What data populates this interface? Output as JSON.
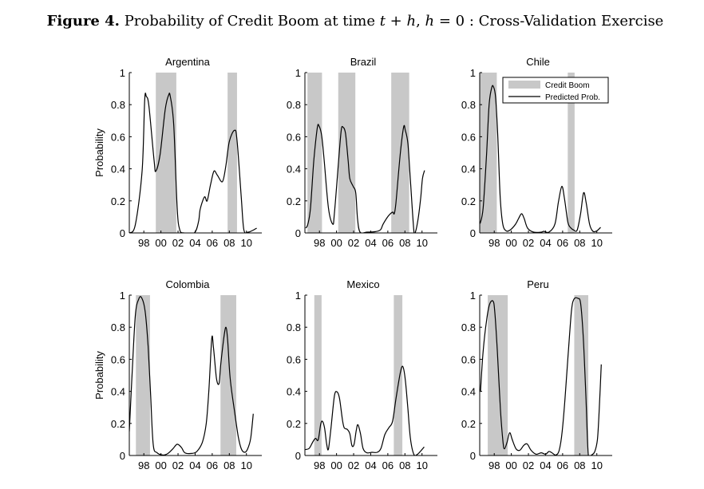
{
  "figure": {
    "label": "Figure 4.",
    "title_pre": "Probability of Credit Boom at time ",
    "title_t": "t",
    "title_plus": " + ",
    "title_h": "h",
    "title_comma": ", ",
    "title_h2": "h",
    "title_rest": " = 0 : Cross-Validation Exercise"
  },
  "legend": {
    "boom": "Credit Boom",
    "prob": "Predicted Prob."
  },
  "colors": {
    "boom": "#c8c8c8",
    "line": "#000000"
  },
  "chart_data": [
    {
      "type": "line",
      "title": "Argentina",
      "ylabel": "Probability",
      "xlabel": "",
      "xlim": [
        1996.3,
        2011.8
      ],
      "ylim": [
        0,
        1
      ],
      "yticks": [
        "0",
        "0.2",
        "0.4",
        "0.6",
        "0.8",
        "1"
      ],
      "xticks": [
        1998,
        2000,
        2002,
        2004,
        2006,
        2008,
        2010
      ],
      "xticklabels": [
        "98",
        "00",
        "02",
        "04",
        "06",
        "08",
        "10"
      ],
      "boom_periods": [
        [
          1999.4,
          2001.8
        ],
        [
          2007.8,
          2008.9
        ]
      ],
      "series": [
        [
          1996.3,
          0
        ],
        [
          1997.0,
          0.05
        ],
        [
          1997.8,
          0.39
        ],
        [
          1998.1,
          0.83
        ],
        [
          1998.3,
          0.85
        ],
        [
          1998.6,
          0.79
        ],
        [
          1999.2,
          0.45
        ],
        [
          1999.4,
          0.385
        ],
        [
          1999.9,
          0.49
        ],
        [
          2000.5,
          0.77
        ],
        [
          2000.9,
          0.86
        ],
        [
          2001.1,
          0.85
        ],
        [
          2001.5,
          0.67
        ],
        [
          2001.9,
          0.155
        ],
        [
          2002.2,
          0.02
        ],
        [
          2002.7,
          0
        ],
        [
          2003.9,
          0
        ],
        [
          2004.4,
          0.07
        ],
        [
          2004.6,
          0.15
        ],
        [
          2005.1,
          0.225
        ],
        [
          2005.4,
          0.2
        ],
        [
          2005.8,
          0.3
        ],
        [
          2006.2,
          0.385
        ],
        [
          2006.6,
          0.36
        ],
        [
          2007.2,
          0.32
        ],
        [
          2007.6,
          0.42
        ],
        [
          2008.0,
          0.57
        ],
        [
          2008.6,
          0.64
        ],
        [
          2008.9,
          0.58
        ],
        [
          2009.4,
          0.22
        ],
        [
          2009.7,
          0.02
        ],
        [
          2010.2,
          0.005
        ],
        [
          2010.7,
          0.015
        ],
        [
          2011.2,
          0.03
        ]
      ]
    },
    {
      "type": "line",
      "title": "Brazil",
      "ylabel": "",
      "xlabel": "",
      "xlim": [
        1996.3,
        2011.8
      ],
      "ylim": [
        0,
        1
      ],
      "yticks": [
        "0",
        "0.2",
        "0.4",
        "0.6",
        "0.8",
        "1"
      ],
      "xticks": [
        1998,
        2000,
        2002,
        2004,
        2006,
        2008,
        2010
      ],
      "xticklabels": [
        "98",
        "00",
        "02",
        "04",
        "06",
        "08",
        "10"
      ],
      "boom_periods": [
        [
          1996.6,
          1998.3
        ],
        [
          2000.2,
          2002.2
        ],
        [
          2006.4,
          2008.5
        ]
      ],
      "series": [
        [
          1996.4,
          0.03
        ],
        [
          1996.65,
          0.055
        ],
        [
          1996.95,
          0.155
        ],
        [
          1997.35,
          0.455
        ],
        [
          1997.75,
          0.655
        ],
        [
          1997.95,
          0.667
        ],
        [
          1998.25,
          0.61
        ],
        [
          1998.55,
          0.455
        ],
        [
          1999.05,
          0.155
        ],
        [
          1999.55,
          0.055
        ],
        [
          1999.75,
          0.12
        ],
        [
          2000.25,
          0.455
        ],
        [
          2000.55,
          0.64
        ],
        [
          2000.75,
          0.66
        ],
        [
          2001.05,
          0.62
        ],
        [
          2001.35,
          0.455
        ],
        [
          2001.55,
          0.34
        ],
        [
          2001.95,
          0.29
        ],
        [
          2002.25,
          0.25
        ],
        [
          2002.45,
          0.09
        ],
        [
          2002.75,
          0.005
        ],
        [
          2003.55,
          0.005
        ],
        [
          2004.55,
          0.008
        ],
        [
          2005.15,
          0.02
        ],
        [
          2005.45,
          0.055
        ],
        [
          2006.05,
          0.105
        ],
        [
          2006.55,
          0.13
        ],
        [
          2006.75,
          0.12
        ],
        [
          2006.95,
          0.19
        ],
        [
          2007.45,
          0.49
        ],
        [
          2007.85,
          0.66
        ],
        [
          2008.05,
          0.64
        ],
        [
          2008.35,
          0.555
        ],
        [
          2008.65,
          0.32
        ],
        [
          2009.05,
          0.013
        ],
        [
          2009.25,
          0.01
        ],
        [
          2009.55,
          0.09
        ],
        [
          2009.85,
          0.22
        ],
        [
          2010.05,
          0.34
        ],
        [
          2010.3,
          0.39
        ]
      ]
    },
    {
      "type": "line",
      "title": "Chile",
      "ylabel": "",
      "xlabel": "",
      "xlim": [
        1996.3,
        2011.8
      ],
      "ylim": [
        0,
        1
      ],
      "yticks": [
        "0",
        "0.2",
        "0.4",
        "0.6",
        "0.8",
        "1"
      ],
      "xticks": [
        1998,
        2000,
        2002,
        2004,
        2006,
        2008,
        2010
      ],
      "xticklabels": [
        "98",
        "00",
        "02",
        "04",
        "06",
        "08",
        "10"
      ],
      "boom_periods": [
        [
          1996.3,
          1998.3
        ],
        [
          2006.6,
          2007.4
        ]
      ],
      "legend": true,
      "series": [
        [
          1996.35,
          0.058
        ],
        [
          1996.7,
          0.155
        ],
        [
          1997.1,
          0.49
        ],
        [
          1997.4,
          0.8
        ],
        [
          1997.7,
          0.905
        ],
        [
          1997.9,
          0.913
        ],
        [
          1998.15,
          0.85
        ],
        [
          1998.4,
          0.62
        ],
        [
          1998.7,
          0.22
        ],
        [
          1999.0,
          0.055
        ],
        [
          1999.4,
          0.013
        ],
        [
          1999.9,
          0.02
        ],
        [
          2000.5,
          0.055
        ],
        [
          2000.85,
          0.09
        ],
        [
          2001.2,
          0.12
        ],
        [
          2001.5,
          0.09
        ],
        [
          2001.9,
          0.03
        ],
        [
          2002.6,
          0.005
        ],
        [
          2003.5,
          0.005
        ],
        [
          2003.8,
          0.01
        ],
        [
          2004.4,
          0.005
        ],
        [
          2005.1,
          0.055
        ],
        [
          2005.5,
          0.19
        ],
        [
          2005.9,
          0.29
        ],
        [
          2006.2,
          0.22
        ],
        [
          2006.6,
          0.07
        ],
        [
          2006.9,
          0.035
        ],
        [
          2007.3,
          0.018
        ],
        [
          2007.7,
          0.018
        ],
        [
          2008.1,
          0.12
        ],
        [
          2008.45,
          0.25
        ],
        [
          2008.75,
          0.19
        ],
        [
          2009.15,
          0.055
        ],
        [
          2009.55,
          0.01
        ],
        [
          2010.0,
          0.013
        ],
        [
          2010.45,
          0.035
        ]
      ]
    },
    {
      "type": "line",
      "title": "Colombia",
      "ylabel": "Probability",
      "xlabel": "",
      "xlim": [
        1996.3,
        2011.8
      ],
      "ylim": [
        0,
        1
      ],
      "yticks": [
        "0",
        "0.2",
        "0.4",
        "0.6",
        "0.8",
        "1"
      ],
      "xticks": [
        1998,
        2000,
        2002,
        2004,
        2006,
        2008,
        2010
      ],
      "xticklabels": [
        "98",
        "00",
        "02",
        "04",
        "06",
        "08",
        "10"
      ],
      "boom_periods": [
        [
          1997.07,
          1998.72
        ],
        [
          2006.97,
          2008.81
        ]
      ],
      "series": [
        [
          1996.3,
          0.15
        ],
        [
          1996.6,
          0.48
        ],
        [
          1997.0,
          0.87
        ],
        [
          1997.4,
          0.975
        ],
        [
          1997.75,
          0.983
        ],
        [
          1998.15,
          0.9
        ],
        [
          1998.5,
          0.68
        ],
        [
          1998.8,
          0.37
        ],
        [
          1999.1,
          0.067
        ],
        [
          1999.55,
          0.017
        ],
        [
          2000.2,
          0.003
        ],
        [
          2000.8,
          0.012
        ],
        [
          2001.4,
          0.042
        ],
        [
          2001.9,
          0.07
        ],
        [
          2002.4,
          0.05
        ],
        [
          2002.8,
          0.017
        ],
        [
          2003.6,
          0.013
        ],
        [
          2004.2,
          0.025
        ],
        [
          2004.85,
          0.083
        ],
        [
          2005.3,
          0.2
        ],
        [
          2005.6,
          0.4
        ],
        [
          2005.95,
          0.73
        ],
        [
          2006.15,
          0.67
        ],
        [
          2006.5,
          0.48
        ],
        [
          2006.8,
          0.45
        ],
        [
          2007.0,
          0.57
        ],
        [
          2007.35,
          0.73
        ],
        [
          2007.6,
          0.8
        ],
        [
          2007.8,
          0.72
        ],
        [
          2008.1,
          0.48
        ],
        [
          2008.6,
          0.28
        ],
        [
          2009.05,
          0.117
        ],
        [
          2009.4,
          0.042
        ],
        [
          2009.8,
          0.02
        ],
        [
          2010.15,
          0.042
        ],
        [
          2010.5,
          0.108
        ],
        [
          2010.8,
          0.26
        ]
      ]
    },
    {
      "type": "line",
      "title": "Mexico",
      "ylabel": "",
      "xlabel": "",
      "xlim": [
        1996.3,
        2011.8
      ],
      "ylim": [
        0,
        1
      ],
      "yticks": [
        "0",
        "0.2",
        "0.4",
        "0.6",
        "0.8",
        "1"
      ],
      "xticks": [
        1998,
        2000,
        2002,
        2004,
        2006,
        2008,
        2010
      ],
      "xticklabels": [
        "98",
        "00",
        "02",
        "04",
        "06",
        "08",
        "10"
      ],
      "boom_periods": [
        [
          1997.4,
          1998.25
        ],
        [
          2006.7,
          2007.7
        ]
      ],
      "series": [
        [
          1996.35,
          0.037
        ],
        [
          1996.8,
          0.045
        ],
        [
          1997.25,
          0.087
        ],
        [
          1997.55,
          0.107
        ],
        [
          1997.85,
          0.097
        ],
        [
          1998.15,
          0.195
        ],
        [
          1998.35,
          0.213
        ],
        [
          1998.6,
          0.172
        ],
        [
          1998.85,
          0.07
        ],
        [
          1999.05,
          0.04
        ],
        [
          1999.35,
          0.172
        ],
        [
          1999.75,
          0.37
        ],
        [
          2000.05,
          0.397
        ],
        [
          2000.35,
          0.355
        ],
        [
          2000.7,
          0.22
        ],
        [
          2000.9,
          0.172
        ],
        [
          2001.25,
          0.163
        ],
        [
          2001.55,
          0.137
        ],
        [
          2001.8,
          0.062
        ],
        [
          2002.05,
          0.07
        ],
        [
          2002.3,
          0.155
        ],
        [
          2002.5,
          0.192
        ],
        [
          2002.8,
          0.137
        ],
        [
          2003.1,
          0.045
        ],
        [
          2003.55,
          0.017
        ],
        [
          2004.15,
          0.02
        ],
        [
          2004.75,
          0.02
        ],
        [
          2005.2,
          0.045
        ],
        [
          2005.65,
          0.13
        ],
        [
          2006.1,
          0.172
        ],
        [
          2006.55,
          0.213
        ],
        [
          2006.95,
          0.355
        ],
        [
          2007.45,
          0.513
        ],
        [
          2007.75,
          0.555
        ],
        [
          2008.05,
          0.47
        ],
        [
          2008.35,
          0.288
        ],
        [
          2008.65,
          0.103
        ],
        [
          2009.05,
          0.007
        ],
        [
          2009.45,
          0.007
        ],
        [
          2009.85,
          0.028
        ],
        [
          2010.25,
          0.053
        ]
      ]
    },
    {
      "type": "line",
      "title": "Peru",
      "ylabel": "",
      "xlabel": "",
      "xlim": [
        1996.3,
        2011.8
      ],
      "ylim": [
        0,
        1
      ],
      "yticks": [
        "0",
        "0.2",
        "0.4",
        "0.6",
        "0.8",
        "1"
      ],
      "xticks": [
        1998,
        2000,
        2002,
        2004,
        2006,
        2008,
        2010
      ],
      "xticklabels": [
        "98",
        "00",
        "02",
        "04",
        "06",
        "08",
        "10"
      ],
      "boom_periods": [
        [
          1997.24,
          1999.58
        ],
        [
          2007.36,
          2009.0
        ]
      ],
      "series": [
        [
          1996.39,
          0.4
        ],
        [
          1996.7,
          0.65
        ],
        [
          1997.1,
          0.842
        ],
        [
          1997.45,
          0.942
        ],
        [
          1997.85,
          0.963
        ],
        [
          1998.06,
          0.9
        ],
        [
          1998.36,
          0.65
        ],
        [
          1998.73,
          0.283
        ],
        [
          1999.03,
          0.083
        ],
        [
          1999.2,
          0.042
        ],
        [
          1999.5,
          0.083
        ],
        [
          1999.8,
          0.142
        ],
        [
          2000.1,
          0.1
        ],
        [
          2000.55,
          0.042
        ],
        [
          2001.0,
          0.033
        ],
        [
          2001.45,
          0.063
        ],
        [
          2001.85,
          0.072
        ],
        [
          2002.3,
          0.033
        ],
        [
          2002.9,
          0.008
        ],
        [
          2003.5,
          0.017
        ],
        [
          2004.0,
          0.008
        ],
        [
          2004.4,
          0.025
        ],
        [
          2004.75,
          0.017
        ],
        [
          2005.2,
          0.003
        ],
        [
          2005.6,
          0.033
        ],
        [
          2005.95,
          0.15
        ],
        [
          2006.27,
          0.35
        ],
        [
          2006.63,
          0.617
        ],
        [
          2007.03,
          0.9
        ],
        [
          2007.33,
          0.975
        ],
        [
          2007.79,
          0.98
        ],
        [
          2008.1,
          0.95
        ],
        [
          2008.4,
          0.75
        ],
        [
          2008.7,
          0.4
        ],
        [
          2009.0,
          0.008
        ],
        [
          2009.37,
          0.003
        ],
        [
          2009.76,
          0.025
        ],
        [
          2010.07,
          0.1
        ],
        [
          2010.28,
          0.283
        ],
        [
          2010.52,
          0.568
        ]
      ]
    }
  ]
}
